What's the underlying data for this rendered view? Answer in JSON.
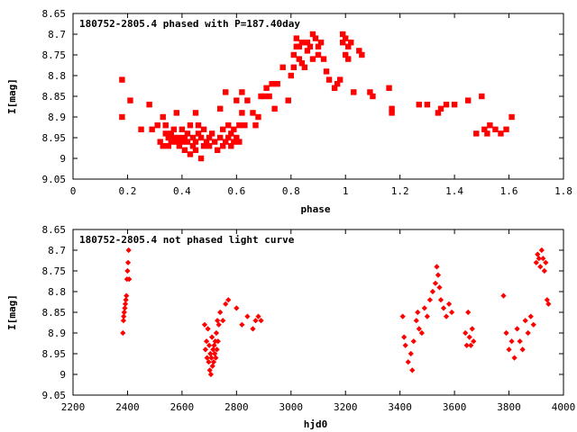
{
  "chart_data": [
    {
      "type": "scatter",
      "title": "180752-2805.4 phased with P=187.40day",
      "xlabel": "phase",
      "ylabel": "I[mag]",
      "xlim": [
        0,
        1.8
      ],
      "ylim": [
        9.05,
        8.65
      ],
      "y_inverted": true,
      "x_ticks": [
        "0",
        "0.2",
        "0.4",
        "0.6",
        "0.8",
        "1",
        "1.2",
        "1.4",
        "1.6",
        "1.8"
      ],
      "y_ticks": [
        "8.65",
        "8.7",
        "8.75",
        "8.8",
        "8.85",
        "8.9",
        "8.95",
        "9",
        "9.05"
      ],
      "marker_color": "#ff0000",
      "grid": false,
      "series": [
        {
          "x": [
            0.18,
            0.18,
            0.21,
            0.25,
            0.28,
            0.29,
            0.31,
            0.32,
            0.33,
            0.33,
            0.34,
            0.34,
            0.35,
            0.35,
            0.36,
            0.36,
            0.37,
            0.37,
            0.38,
            0.38,
            0.39,
            0.39,
            0.4,
            0.4,
            0.41,
            0.41,
            0.42,
            0.42,
            0.43,
            0.43,
            0.44,
            0.44,
            0.45,
            0.45,
            0.45,
            0.46,
            0.46,
            0.47,
            0.47,
            0.48,
            0.48,
            0.49,
            0.5,
            0.5,
            0.51,
            0.52,
            0.53,
            0.54,
            0.54,
            0.55,
            0.55,
            0.56,
            0.56,
            0.57,
            0.57,
            0.58,
            0.58,
            0.59,
            0.59,
            0.6,
            0.6,
            0.61,
            0.61,
            0.62,
            0.62,
            0.63,
            0.64,
            0.66,
            0.67,
            0.68,
            0.69,
            0.7,
            0.71,
            0.72,
            0.73,
            0.74,
            0.75,
            0.77,
            0.79,
            0.8,
            0.81,
            0.81,
            0.82,
            0.82,
            0.83,
            0.83,
            0.84,
            0.84,
            0.85,
            0.86,
            0.86,
            0.87,
            0.88,
            0.88,
            0.89,
            0.9,
            0.9,
            0.91,
            0.92,
            0.93,
            0.94,
            0.96,
            0.97,
            0.98,
            0.99,
            0.99,
            1.0,
            1.0,
            1.01,
            1.01,
            1.02,
            1.03,
            1.05,
            1.06,
            1.09,
            1.1,
            1.16,
            1.17,
            1.17,
            1.27,
            1.3,
            1.34,
            1.35,
            1.37,
            1.4,
            1.45,
            1.48,
            1.5,
            1.51,
            1.52,
            1.53,
            1.55,
            1.57,
            1.59,
            1.61
          ],
          "y": [
            8.81,
            8.9,
            8.86,
            8.93,
            8.87,
            8.93,
            8.92,
            8.96,
            8.9,
            8.97,
            8.94,
            8.92,
            8.95,
            8.97,
            8.94,
            8.96,
            8.93,
            8.95,
            8.96,
            8.89,
            8.97,
            8.95,
            8.96,
            8.93,
            8.95,
            8.98,
            8.96,
            8.94,
            8.99,
            8.92,
            8.97,
            8.95,
            8.96,
            8.89,
            8.98,
            8.94,
            8.92,
            9.0,
            8.95,
            8.97,
            8.93,
            8.96,
            8.95,
            8.97,
            8.94,
            8.96,
            8.98,
            8.88,
            8.95,
            8.93,
            8.97,
            8.96,
            8.84,
            8.95,
            8.92,
            8.94,
            8.97,
            8.93,
            8.96,
            8.95,
            8.86,
            8.92,
            8.96,
            8.84,
            8.89,
            8.92,
            8.86,
            8.89,
            8.92,
            8.9,
            8.85,
            8.85,
            8.83,
            8.85,
            8.82,
            8.88,
            8.82,
            8.78,
            8.86,
            8.8,
            8.75,
            8.78,
            8.73,
            8.71,
            8.76,
            8.73,
            8.77,
            8.72,
            8.78,
            8.72,
            8.74,
            8.73,
            8.7,
            8.76,
            8.71,
            8.75,
            8.73,
            8.72,
            8.76,
            8.79,
            8.81,
            8.83,
            8.82,
            8.81,
            8.72,
            8.7,
            8.71,
            8.75,
            8.73,
            8.76,
            8.72,
            8.84,
            8.74,
            8.75,
            8.84,
            8.85,
            8.83,
            8.88,
            8.89,
            8.87,
            8.87,
            8.89,
            8.88,
            8.87,
            8.87,
            8.86,
            8.94,
            8.85,
            8.93,
            8.94,
            8.92,
            8.93,
            8.94,
            8.93,
            8.9
          ]
        }
      ]
    },
    {
      "type": "scatter",
      "title": "180752-2805.4 not phased light curve",
      "xlabel": "hjd0",
      "ylabel": "I[mag]",
      "xlim": [
        2200,
        4000
      ],
      "ylim": [
        9.05,
        8.65
      ],
      "y_inverted": true,
      "x_ticks": [
        "2200",
        "2400",
        "2600",
        "2800",
        "3000",
        "3200",
        "3400",
        "3600",
        "3800",
        "4000"
      ],
      "y_ticks": [
        "8.65",
        "8.7",
        "8.75",
        "8.8",
        "8.85",
        "8.9",
        "8.95",
        "9",
        "9.05"
      ],
      "marker_color": "#ff0000",
      "grid": false,
      "series": [
        {
          "x": [
            2383,
            2385,
            2386,
            2388,
            2390,
            2392,
            2394,
            2396,
            2398,
            2400,
            2402,
            2404,
            2406,
            2683,
            2686,
            2690,
            2692,
            2695,
            2698,
            2700,
            2702,
            2704,
            2706,
            2708,
            2710,
            2712,
            2714,
            2716,
            2718,
            2720,
            2722,
            2724,
            2726,
            2728,
            2730,
            2732,
            2735,
            2740,
            2750,
            2760,
            2770,
            2800,
            2820,
            2840,
            2860,
            2870,
            2880,
            2890,
            3410,
            3415,
            3420,
            3430,
            3440,
            3445,
            3450,
            3460,
            3465,
            3470,
            3480,
            3490,
            3500,
            3510,
            3520,
            3530,
            3535,
            3540,
            3545,
            3550,
            3560,
            3570,
            3580,
            3590,
            3640,
            3645,
            3650,
            3655,
            3660,
            3665,
            3670,
            3780,
            3790,
            3800,
            3810,
            3820,
            3830,
            3840,
            3850,
            3860,
            3870,
            3880,
            3890,
            3900,
            3905,
            3910,
            3915,
            3920,
            3925,
            3930,
            3935,
            3940,
            3945
          ],
          "y": [
            8.9,
            8.87,
            8.86,
            8.85,
            8.84,
            8.83,
            8.82,
            8.81,
            8.77,
            8.75,
            8.73,
            8.7,
            8.77,
            8.88,
            8.94,
            8.92,
            8.96,
            8.89,
            8.97,
            8.93,
            8.99,
            8.95,
            9.0,
            8.96,
            8.91,
            8.98,
            8.94,
            8.97,
            8.93,
            8.95,
            8.92,
            8.96,
            8.9,
            8.94,
            8.87,
            8.92,
            8.88,
            8.85,
            8.87,
            8.83,
            8.82,
            8.84,
            8.88,
            8.86,
            8.89,
            8.87,
            8.86,
            8.87,
            8.86,
            8.91,
            8.93,
            8.97,
            8.95,
            8.99,
            8.92,
            8.87,
            8.85,
            8.89,
            8.9,
            8.84,
            8.86,
            8.82,
            8.8,
            8.78,
            8.74,
            8.76,
            8.79,
            8.82,
            8.84,
            8.86,
            8.83,
            8.85,
            8.9,
            8.93,
            8.85,
            8.91,
            8.93,
            8.89,
            8.92,
            8.81,
            8.9,
            8.94,
            8.92,
            8.96,
            8.89,
            8.92,
            8.94,
            8.87,
            8.9,
            8.86,
            8.88,
            8.73,
            8.71,
            8.72,
            8.74,
            8.7,
            8.72,
            8.75,
            8.73,
            8.82,
            8.83
          ]
        }
      ]
    }
  ]
}
